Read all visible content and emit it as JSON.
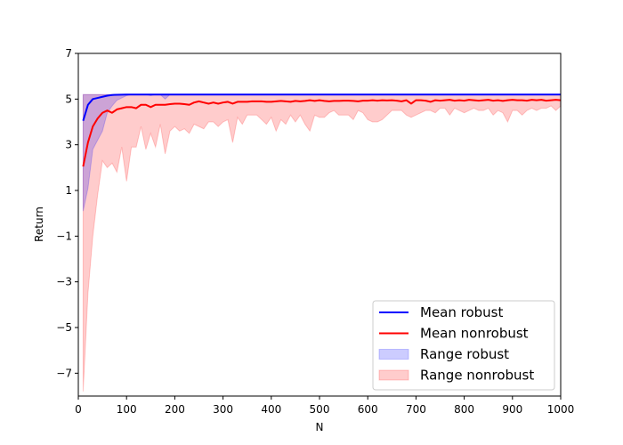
{
  "chart_data": {
    "type": "line",
    "title": "",
    "xlabel": "N",
    "ylabel": "Return",
    "xlim": [
      0,
      1000
    ],
    "ylim": [
      -8,
      7
    ],
    "xticks": [
      0,
      100,
      200,
      300,
      400,
      500,
      600,
      700,
      800,
      900,
      1000
    ],
    "xtick_labels": [
      "0",
      "100",
      "200",
      "300",
      "400",
      "500",
      "600",
      "700",
      "800",
      "900",
      "1000"
    ],
    "yticks": [
      -7,
      -5,
      -3,
      -1,
      1,
      3,
      5,
      7
    ],
    "ytick_labels": [
      "−7",
      "−5",
      "−3",
      "−1",
      "1",
      "3",
      "5",
      "7"
    ],
    "grid": false,
    "legend_position": "bottom-right",
    "colors": {
      "mean_robust": "#0000ff",
      "mean_nonrobust": "#ff0000",
      "range_robust": "#0000ff",
      "range_nonrobust": "#ff0000"
    },
    "series": [
      {
        "name": "Mean robust",
        "kind": "line",
        "x": [
          10,
          20,
          30,
          40,
          50,
          60,
          70,
          80,
          100,
          150,
          200,
          300,
          400,
          500,
          600,
          700,
          800,
          900,
          1000
        ],
        "y": [
          4.05,
          4.75,
          5.0,
          5.05,
          5.1,
          5.15,
          5.18,
          5.19,
          5.2,
          5.2,
          5.2,
          5.2,
          5.2,
          5.2,
          5.2,
          5.2,
          5.2,
          5.2,
          5.2
        ]
      },
      {
        "name": "Mean nonrobust",
        "kind": "line",
        "x": [
          10,
          20,
          30,
          40,
          50,
          60,
          70,
          80,
          90,
          100,
          110,
          120,
          130,
          140,
          150,
          160,
          170,
          180,
          190,
          200,
          210,
          220,
          230,
          240,
          250,
          260,
          270,
          280,
          290,
          300,
          310,
          320,
          330,
          340,
          350,
          360,
          370,
          380,
          390,
          400,
          410,
          420,
          430,
          440,
          450,
          460,
          470,
          480,
          490,
          500,
          510,
          520,
          530,
          540,
          550,
          560,
          570,
          580,
          590,
          600,
          610,
          620,
          630,
          640,
          650,
          660,
          670,
          680,
          690,
          700,
          710,
          720,
          730,
          740,
          750,
          760,
          770,
          780,
          790,
          800,
          810,
          820,
          830,
          840,
          850,
          860,
          870,
          880,
          890,
          900,
          910,
          920,
          930,
          940,
          950,
          960,
          970,
          980,
          990,
          1000
        ],
        "y": [
          2.05,
          3.1,
          3.8,
          4.15,
          4.4,
          4.5,
          4.4,
          4.55,
          4.6,
          4.65,
          4.65,
          4.6,
          4.75,
          4.75,
          4.65,
          4.75,
          4.75,
          4.75,
          4.78,
          4.8,
          4.8,
          4.78,
          4.75,
          4.85,
          4.9,
          4.85,
          4.8,
          4.85,
          4.8,
          4.85,
          4.88,
          4.8,
          4.88,
          4.88,
          4.88,
          4.9,
          4.9,
          4.9,
          4.88,
          4.88,
          4.9,
          4.92,
          4.9,
          4.88,
          4.92,
          4.9,
          4.92,
          4.95,
          4.92,
          4.95,
          4.92,
          4.9,
          4.92,
          4.92,
          4.93,
          4.93,
          4.92,
          4.9,
          4.93,
          4.93,
          4.95,
          4.93,
          4.95,
          4.94,
          4.95,
          4.93,
          4.9,
          4.95,
          4.8,
          4.95,
          4.95,
          4.93,
          4.88,
          4.95,
          4.93,
          4.95,
          4.97,
          4.93,
          4.95,
          4.93,
          4.97,
          4.95,
          4.93,
          4.95,
          4.97,
          4.93,
          4.95,
          4.92,
          4.95,
          4.97,
          4.95,
          4.95,
          4.93,
          4.97,
          4.95,
          4.97,
          4.93,
          4.95,
          4.97,
          4.95
        ]
      },
      {
        "name": "Range robust",
        "kind": "band",
        "x": [
          10,
          20,
          30,
          40,
          50,
          60,
          70,
          80,
          90,
          100,
          110,
          120,
          130,
          140,
          150,
          160,
          170,
          180,
          190,
          200,
          300,
          400,
          500,
          600,
          700,
          800,
          900,
          1000
        ],
        "y_low": [
          0.1,
          1.1,
          2.8,
          3.2,
          3.6,
          4.4,
          4.7,
          4.95,
          5.05,
          5.15,
          5.2,
          5.2,
          5.2,
          5.2,
          5.15,
          5.2,
          5.2,
          5.0,
          5.2,
          5.2,
          5.2,
          5.2,
          5.2,
          5.2,
          5.2,
          5.2,
          5.2,
          5.2
        ],
        "y_high": [
          5.2,
          5.2,
          5.2,
          5.2,
          5.2,
          5.2,
          5.2,
          5.2,
          5.2,
          5.2,
          5.2,
          5.2,
          5.2,
          5.2,
          5.2,
          5.2,
          5.2,
          5.2,
          5.2,
          5.2,
          5.2,
          5.2,
          5.2,
          5.2,
          5.2,
          5.2,
          5.2,
          5.2
        ]
      },
      {
        "name": "Range nonrobust",
        "kind": "band",
        "x": [
          10,
          20,
          30,
          40,
          50,
          60,
          70,
          80,
          90,
          100,
          110,
          120,
          130,
          140,
          150,
          160,
          170,
          180,
          190,
          200,
          210,
          220,
          230,
          240,
          250,
          260,
          270,
          280,
          290,
          300,
          310,
          320,
          330,
          340,
          350,
          360,
          370,
          380,
          390,
          400,
          410,
          420,
          430,
          440,
          450,
          460,
          470,
          480,
          490,
          500,
          510,
          520,
          530,
          540,
          550,
          560,
          570,
          580,
          590,
          600,
          610,
          620,
          630,
          640,
          650,
          660,
          670,
          680,
          690,
          700,
          710,
          720,
          730,
          740,
          750,
          760,
          770,
          780,
          790,
          800,
          810,
          820,
          830,
          840,
          850,
          860,
          870,
          880,
          890,
          900,
          910,
          920,
          930,
          940,
          950,
          960,
          970,
          980,
          990,
          1000
        ],
        "y_low": [
          -7.8,
          -3.5,
          -1.0,
          0.8,
          2.3,
          2.0,
          2.2,
          1.8,
          2.9,
          1.4,
          2.9,
          2.9,
          3.8,
          2.8,
          3.5,
          2.9,
          3.9,
          2.6,
          3.6,
          3.8,
          3.6,
          3.7,
          3.5,
          3.9,
          3.8,
          3.7,
          4.0,
          4.0,
          3.8,
          4.0,
          4.1,
          3.1,
          4.2,
          3.9,
          4.3,
          4.3,
          4.3,
          4.1,
          3.9,
          4.2,
          3.6,
          4.1,
          3.9,
          4.3,
          4.0,
          4.3,
          3.9,
          3.6,
          4.3,
          4.2,
          4.2,
          4.4,
          4.5,
          4.3,
          4.3,
          4.3,
          4.1,
          4.5,
          4.4,
          4.1,
          4.0,
          4.0,
          4.1,
          4.3,
          4.5,
          4.5,
          4.5,
          4.3,
          4.2,
          4.3,
          4.4,
          4.5,
          4.5,
          4.4,
          4.6,
          4.6,
          4.3,
          4.6,
          4.5,
          4.4,
          4.5,
          4.6,
          4.5,
          4.5,
          4.6,
          4.3,
          4.5,
          4.4,
          4.0,
          4.5,
          4.5,
          4.3,
          4.5,
          4.6,
          4.5,
          4.6,
          4.6,
          4.7,
          4.5,
          4.7
        ],
        "y_high": [
          5.2,
          5.2,
          5.2,
          5.2,
          5.2,
          5.2,
          5.2,
          5.2,
          5.2,
          5.2,
          5.2,
          5.2,
          5.2,
          5.2,
          5.2,
          5.2,
          5.2,
          5.2,
          5.2,
          5.2,
          5.2,
          5.2,
          5.2,
          5.2,
          5.2,
          5.2,
          5.2,
          5.2,
          5.2,
          5.2,
          5.2,
          5.2,
          5.2,
          5.2,
          5.2,
          5.2,
          5.2,
          5.2,
          5.2,
          5.2,
          5.2,
          5.2,
          5.2,
          5.2,
          5.2,
          5.2,
          5.2,
          5.2,
          5.2,
          5.2,
          5.2,
          5.2,
          5.2,
          5.2,
          5.2,
          5.2,
          5.2,
          5.2,
          5.2,
          5.2,
          5.2,
          5.2,
          5.2,
          5.2,
          5.2,
          5.2,
          5.2,
          5.2,
          5.2,
          5.2,
          5.2,
          5.2,
          5.2,
          5.2,
          5.2,
          5.2,
          5.2,
          5.2,
          5.2,
          5.2,
          5.2,
          5.2,
          5.2,
          5.2,
          5.2,
          5.2,
          5.2,
          5.2,
          5.2,
          5.2,
          5.2,
          5.2,
          5.2,
          5.2,
          5.2,
          5.2,
          5.2,
          5.2,
          5.2,
          5.2
        ]
      }
    ]
  }
}
